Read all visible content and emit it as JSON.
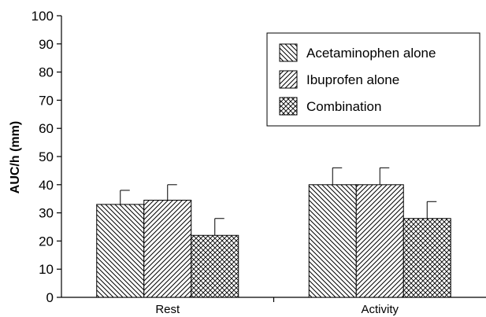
{
  "chart_data": {
    "type": "bar",
    "ylabel": "AUC/h (mm)",
    "ylim": [
      0,
      100
    ],
    "yticks": [
      0,
      10,
      20,
      30,
      40,
      50,
      60,
      70,
      80,
      90,
      100
    ],
    "categories": [
      "Rest",
      "Activity"
    ],
    "series": [
      {
        "name": "Acetaminophen alone",
        "pattern": "diagonal-backslash",
        "values": [
          33,
          40
        ],
        "errors": [
          5,
          6
        ]
      },
      {
        "name": "Ibuprofen alone",
        "pattern": "diagonal-slash",
        "values": [
          34.5,
          40
        ],
        "errors": [
          5.5,
          6
        ]
      },
      {
        "name": "Combination",
        "pattern": "crosshatch",
        "values": [
          22,
          28
        ],
        "errors": [
          6,
          6
        ]
      }
    ],
    "error_bars": true,
    "legend_position": "top-right",
    "grid": false
  }
}
